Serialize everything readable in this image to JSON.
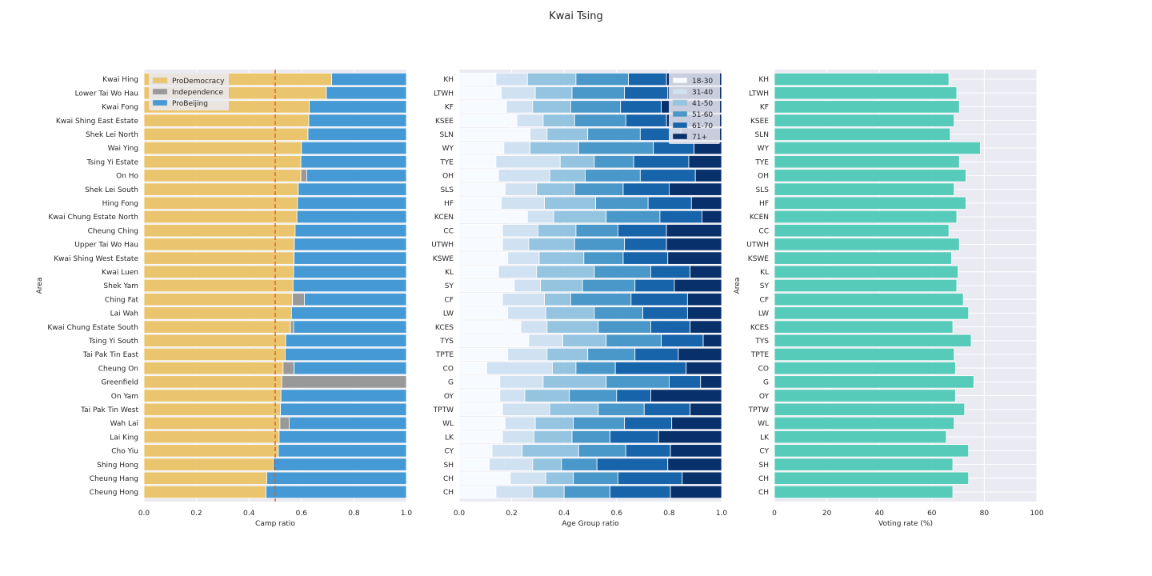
{
  "title": "Kwai Tsing",
  "chart_data": [
    {
      "type": "bar",
      "orientation": "horizontal",
      "stacked": true,
      "xlabel": "Camp ratio",
      "ylabel": "Area",
      "xlim": [
        0,
        1
      ],
      "xticks": [
        "0.0",
        "0.2",
        "0.4",
        "0.6",
        "0.8",
        "1.0"
      ],
      "reference_line": 0.5,
      "legend_position": "top-left",
      "grid": true,
      "categories": [
        "Kwai Hing",
        "Lower Tai Wo Hau",
        "Kwai Fong",
        "Kwai Shing East Estate",
        "Shek Lei North",
        "Wai Ying",
        "Tsing Yi Estate",
        "On Ho",
        "Shek Lei South",
        "Hing Fong",
        "Kwai Chung Estate North",
        "Cheung Ching",
        "Upper Tai Wo Hau",
        "Kwai Shing West Estate",
        "Kwai Luen",
        "Shek Yam",
        "Ching Fat",
        "Lai Wah",
        "Kwai Chung Estate South",
        "Tsing Yi South",
        "Tai Pak Tin East",
        "Cheung On",
        "Greenfield",
        "On Yam",
        "Tai Pak Tin West",
        "Wah Lai",
        "Lai King",
        "Cho Yiu",
        "Shing Hong",
        "Cheung Hang",
        "Cheung Hong"
      ],
      "series": [
        {
          "name": "ProDemocracy",
          "color": "#ebc56e",
          "values": [
            0.715,
            0.695,
            0.63,
            0.628,
            0.625,
            0.6,
            0.598,
            0.598,
            0.588,
            0.585,
            0.583,
            0.576,
            0.573,
            0.572,
            0.57,
            0.568,
            0.566,
            0.562,
            0.558,
            0.54,
            0.538,
            0.53,
            0.525,
            0.522,
            0.52,
            0.518,
            0.515,
            0.512,
            0.492,
            0.468,
            0.465
          ]
        },
        {
          "name": "Independence",
          "color": "#999999",
          "values": [
            0,
            0,
            0,
            0,
            0,
            0,
            0,
            0.022,
            0,
            0,
            0,
            0,
            0,
            0,
            0,
            0,
            0.045,
            0,
            0.012,
            0,
            0,
            0.042,
            0.475,
            0,
            0,
            0.035,
            0,
            0,
            0,
            0,
            0
          ]
        },
        {
          "name": "ProBeijing",
          "color": "#4599d4",
          "values": [
            0.285,
            0.305,
            0.37,
            0.372,
            0.375,
            0.4,
            0.402,
            0.38,
            0.412,
            0.415,
            0.417,
            0.424,
            0.427,
            0.428,
            0.43,
            0.432,
            0.389,
            0.438,
            0.43,
            0.46,
            0.462,
            0.428,
            0,
            0.478,
            0.48,
            0.447,
            0.485,
            0.488,
            0.508,
            0.532,
            0.535
          ]
        }
      ]
    },
    {
      "type": "bar",
      "orientation": "horizontal",
      "stacked": true,
      "xlabel": "Age Group ratio",
      "ylabel": "",
      "xlim": [
        0,
        1
      ],
      "xticks": [
        "0.0",
        "0.2",
        "0.4",
        "0.6",
        "0.8",
        "1.0"
      ],
      "legend_position": "top-right",
      "grid": true,
      "categories": [
        "KH",
        "LTWH",
        "KF",
        "KSEE",
        "SLN",
        "WY",
        "TYE",
        "OH",
        "SLS",
        "HF",
        "KCEN",
        "CC",
        "UTWH",
        "KSWE",
        "KL",
        "SY",
        "CF",
        "LW",
        "KCES",
        "TYS",
        "TPTE",
        "CO",
        "G",
        "OY",
        "TPTW",
        "WL",
        "LK",
        "CY",
        "SH",
        "CH",
        "CH"
      ],
      "series": [
        {
          "name": "18-30",
          "color": "#f7fbff",
          "values": [
            0.14,
            0.16,
            0.18,
            0.22,
            0.27,
            0.17,
            0.14,
            0.15,
            0.175,
            0.16,
            0.26,
            0.165,
            0.165,
            0.185,
            0.15,
            0.21,
            0.165,
            0.185,
            0.235,
            0.265,
            0.185,
            0.105,
            0.155,
            0.155,
            0.165,
            0.175,
            0.165,
            0.125,
            0.115,
            0.195,
            0.14
          ]
        },
        {
          "name": "31-40",
          "color": "#d0e1f2",
          "values": [
            0.12,
            0.13,
            0.1,
            0.1,
            0.065,
            0.1,
            0.245,
            0.195,
            0.12,
            0.165,
            0.1,
            0.135,
            0.1,
            0.12,
            0.145,
            0.1,
            0.16,
            0.145,
            0.1,
            0.13,
            0.15,
            0.25,
            0.165,
            0.095,
            0.18,
            0.115,
            0.12,
            0.115,
            0.165,
            0.135,
            0.14
          ]
        },
        {
          "name": "41-50",
          "color": "#94c4df",
          "values": [
            0.185,
            0.14,
            0.145,
            0.12,
            0.155,
            0.185,
            0.13,
            0.135,
            0.145,
            0.195,
            0.2,
            0.145,
            0.175,
            0.17,
            0.22,
            0.16,
            0.1,
            0.185,
            0.195,
            0.165,
            0.155,
            0.09,
            0.24,
            0.17,
            0.185,
            0.145,
            0.145,
            0.215,
            0.11,
            0.105,
            0.12
          ]
        },
        {
          "name": "51-60",
          "color": "#4a98c9",
          "values": [
            0.2,
            0.2,
            0.19,
            0.195,
            0.2,
            0.285,
            0.15,
            0.21,
            0.185,
            0.2,
            0.205,
            0.16,
            0.19,
            0.15,
            0.215,
            0.2,
            0.23,
            0.185,
            0.2,
            0.21,
            0.18,
            0.15,
            0.24,
            0.18,
            0.175,
            0.195,
            0.145,
            0.18,
            0.135,
            0.17,
            0.175
          ]
        },
        {
          "name": "61-70",
          "color": "#1764ab",
          "values": [
            0.145,
            0.165,
            0.155,
            0.155,
            0.155,
            0.155,
            0.21,
            0.21,
            0.175,
            0.165,
            0.16,
            0.185,
            0.16,
            0.17,
            0.15,
            0.15,
            0.215,
            0.17,
            0.15,
            0.16,
            0.165,
            0.27,
            0.12,
            0.13,
            0.175,
            0.18,
            0.185,
            0.17,
            0.27,
            0.245,
            0.23
          ]
        },
        {
          "name": "71+",
          "color": "#08306b",
          "values": [
            0.21,
            0.205,
            0.23,
            0.21,
            0.155,
            0.105,
            0.125,
            0.1,
            0.2,
            0.115,
            0.075,
            0.21,
            0.21,
            0.205,
            0.12,
            0.18,
            0.13,
            0.13,
            0.12,
            0.07,
            0.165,
            0.135,
            0.08,
            0.27,
            0.12,
            0.19,
            0.24,
            0.195,
            0.205,
            0.15,
            0.195
          ]
        }
      ]
    },
    {
      "type": "bar",
      "orientation": "horizontal",
      "xlabel": "Voting rate (%)",
      "ylabel": "Area",
      "xlim": [
        0,
        100
      ],
      "xticks": [
        "0",
        "20",
        "40",
        "60",
        "80",
        "100"
      ],
      "grid": true,
      "color": "#57cbb9",
      "categories": [
        "KH",
        "LTWH",
        "KF",
        "KSEE",
        "SLN",
        "WY",
        "TYE",
        "OH",
        "SLS",
        "HF",
        "KCEN",
        "CC",
        "UTWH",
        "KSWE",
        "KL",
        "SY",
        "CF",
        "LW",
        "KCES",
        "TYS",
        "TPTE",
        "CO",
        "G",
        "OY",
        "TPTW",
        "WL",
        "LK",
        "CY",
        "SH",
        "CH",
        "CH"
      ],
      "values": [
        66.5,
        69.5,
        70.5,
        68.5,
        67,
        78.5,
        70.5,
        73,
        68.5,
        73,
        69.5,
        66.5,
        70.5,
        67.5,
        70,
        69.5,
        72,
        74,
        68,
        75,
        68.5,
        69,
        76,
        69,
        72.5,
        68.5,
        65.5,
        74,
        68,
        74,
        68
      ]
    }
  ]
}
